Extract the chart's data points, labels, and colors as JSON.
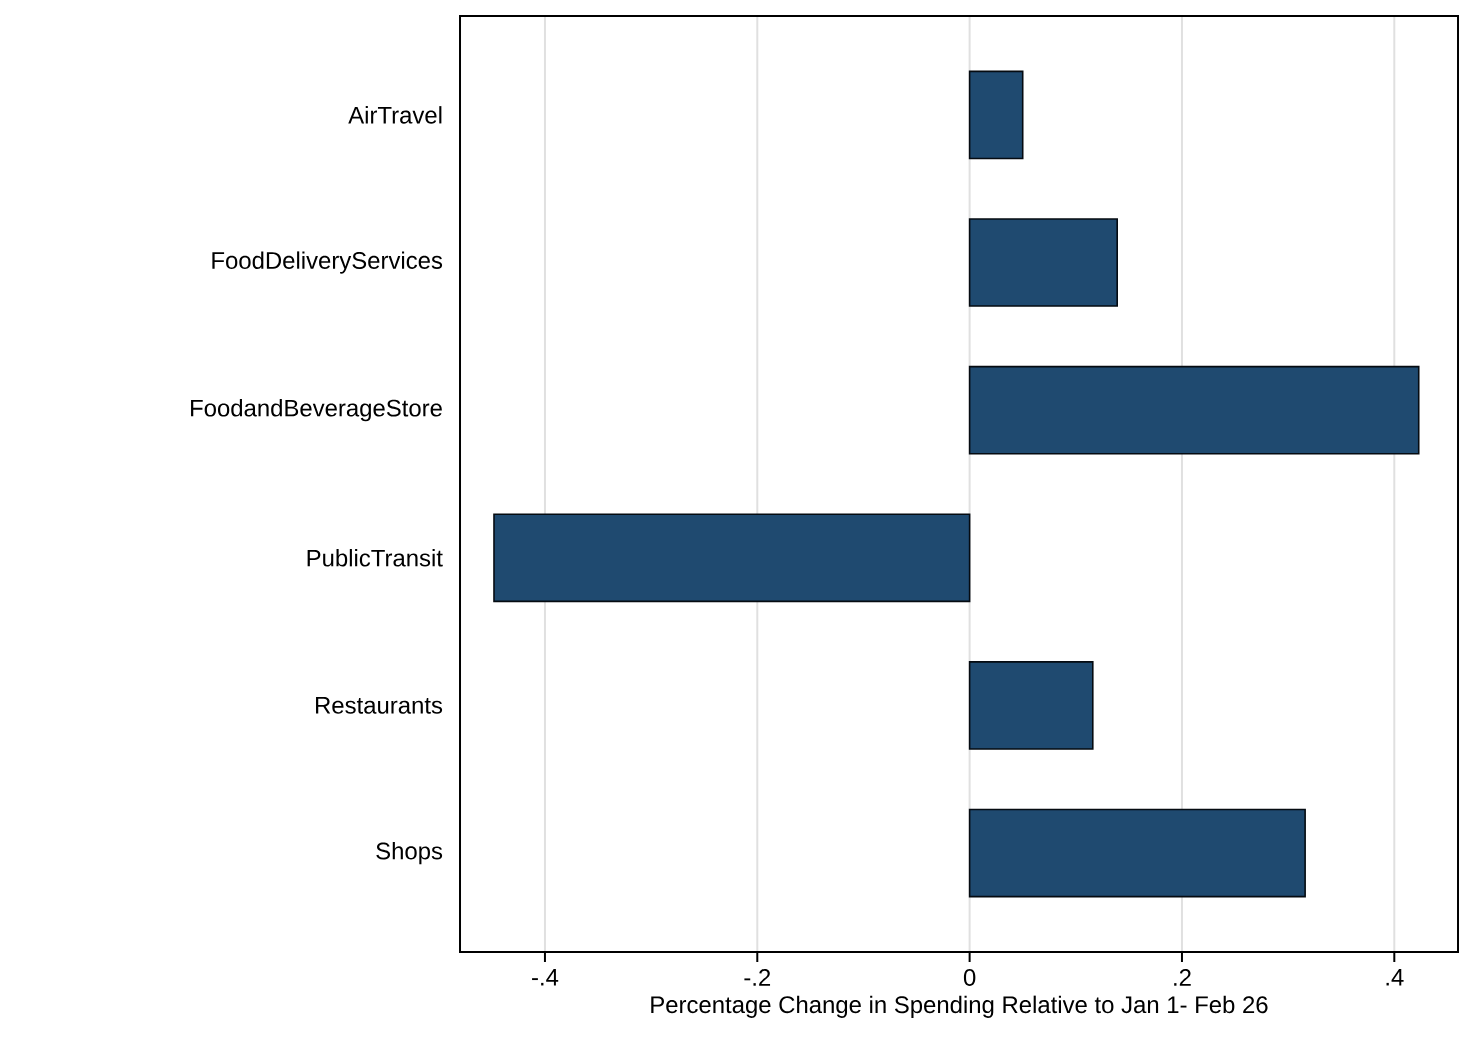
{
  "chart_data": {
    "type": "bar",
    "orientation": "horizontal",
    "xlabel": "Percentage Change in Spending Relative to Jan 1- Feb 26",
    "categories": [
      "AirTravel",
      "FoodDeliveryServices",
      "FoodandBeverageStore",
      "PublicTransit",
      "Restaurants",
      "Shops"
    ],
    "values": [
      0.05,
      0.139,
      0.423,
      -0.448,
      0.116,
      0.316
    ],
    "color": "#1f4a70",
    "xlim": [
      -0.48,
      0.46
    ],
    "xticks": [
      {
        "value": -0.4,
        "label": "-.4"
      },
      {
        "value": -0.2,
        "label": "-.2"
      },
      0,
      {
        "value": 0.2,
        "label": ".2"
      },
      {
        "value": 0.4,
        "label": ".4"
      }
    ],
    "grid": "x"
  }
}
